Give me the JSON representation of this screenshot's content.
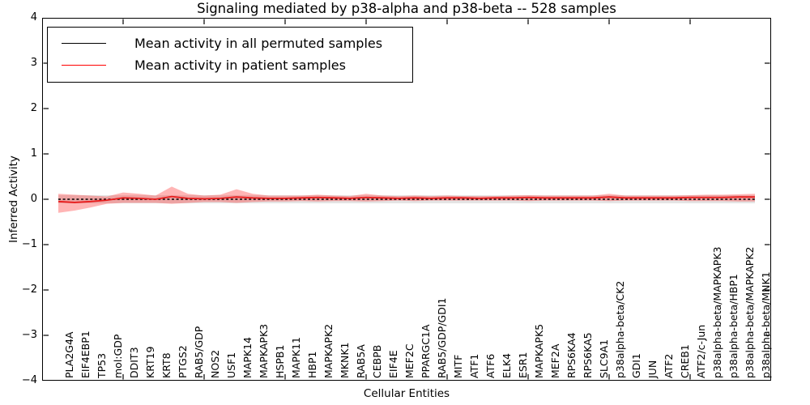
{
  "title": "Signaling mediated by p38-alpha and p38-beta -- 528 samples",
  "xlabel": "Cellular Entities",
  "ylabel": "Inferred Activity",
  "legend": {
    "items": [
      {
        "label": "Mean activity in all permuted samples",
        "color": "#000000"
      },
      {
        "label": "Mean activity in patient samples",
        "color": "#ff0000"
      }
    ],
    "position": "upper left"
  },
  "colors": {
    "permuted_line": "#000000",
    "permuted_band": "rgba(130,130,130,0.22)",
    "patient_line": "#e81c1c",
    "patient_band": "rgba(255,30,30,0.33)",
    "axis": "#000000"
  },
  "chart_data": {
    "type": "line",
    "title": "Signaling mediated by p38-alpha and p38-beta -- 528 samples",
    "xlabel": "Cellular Entities",
    "ylabel": "Inferred Activity",
    "ylim": [
      -4,
      4
    ],
    "yticks": [
      4,
      3,
      2,
      1,
      0,
      -1,
      -2,
      -3,
      -4
    ],
    "xtick_rotation": 90,
    "grid": false,
    "legend_position": "upper left",
    "categories": [
      "PLA2G4A",
      "EIF4EBP1",
      "TP53",
      "mol:GDP",
      "DDIT3",
      "KRT19",
      "KRT8",
      "PTGS2",
      "RAB5/GDP",
      "NOS2",
      "USF1",
      "MAPK14",
      "MAPKAPK3",
      "HSPB1",
      "MAPK11",
      "HBP1",
      "MAPKAPK2",
      "MKNK1",
      "RAB5A",
      "CEBPB",
      "EIF4E",
      "MEF2C",
      "PPARGC1A",
      "RAB5/GDP/GDI1",
      "MITF",
      "ATF1",
      "ATF6",
      "ELK4",
      "ESR1",
      "MAPKAPK5",
      "MEF2A",
      "RPS6KA4",
      "RPS6KA5",
      "SLC9A1",
      "p38alpha-beta/CK2",
      "GDI1",
      "JUN",
      "ATF2",
      "CREB1",
      "ATF2/c-Jun",
      "p38alpha-beta/MAPKAPK3",
      "p38alpha-beta/HBP1",
      "p38alpha-beta/MAPKAPK2",
      "p38alpha-beta/MNK1"
    ],
    "series": [
      {
        "name": "Mean activity in all permuted samples",
        "style": "dashed",
        "values": [
          0,
          0,
          0,
          0,
          0,
          0,
          0,
          0,
          0,
          0,
          0,
          0,
          0,
          0,
          0,
          0,
          0,
          0,
          0,
          0,
          0,
          0,
          0,
          0,
          0,
          0,
          0,
          0,
          0,
          0,
          0,
          0,
          0,
          0,
          0,
          0,
          0,
          0,
          0,
          0,
          0,
          0,
          0,
          0
        ],
        "band_upper": 0.09,
        "band_lower": -0.09
      },
      {
        "name": "Mean activity in patient samples",
        "style": "solid",
        "values": [
          -0.05,
          -0.07,
          -0.05,
          -0.02,
          0.03,
          0.02,
          0.0,
          0.06,
          0.02,
          0.01,
          0.02,
          0.05,
          0.03,
          0.02,
          0.02,
          0.03,
          0.04,
          0.03,
          0.02,
          0.04,
          0.03,
          0.02,
          0.03,
          0.02,
          0.03,
          0.03,
          0.02,
          0.03,
          0.03,
          0.04,
          0.03,
          0.03,
          0.03,
          0.03,
          0.05,
          0.03,
          0.03,
          0.03,
          0.03,
          0.04,
          0.04,
          0.04,
          0.05,
          0.05
        ],
        "band_upper": [
          0.12,
          0.1,
          0.08,
          0.06,
          0.15,
          0.12,
          0.08,
          0.28,
          0.12,
          0.08,
          0.1,
          0.22,
          0.12,
          0.08,
          0.08,
          0.08,
          0.1,
          0.08,
          0.07,
          0.12,
          0.08,
          0.07,
          0.08,
          0.07,
          0.08,
          0.07,
          0.07,
          0.07,
          0.08,
          0.09,
          0.08,
          0.08,
          0.08,
          0.08,
          0.12,
          0.08,
          0.08,
          0.08,
          0.08,
          0.09,
          0.1,
          0.1,
          0.11,
          0.12
        ],
        "band_lower": [
          -0.3,
          -0.25,
          -0.18,
          -0.1,
          -0.08,
          -0.08,
          -0.08,
          -0.1,
          -0.08,
          -0.06,
          -0.06,
          -0.08,
          -0.06,
          -0.05,
          -0.05,
          -0.04,
          -0.05,
          -0.04,
          -0.04,
          -0.05,
          -0.04,
          -0.03,
          -0.04,
          -0.03,
          -0.03,
          -0.03,
          -0.03,
          -0.03,
          -0.03,
          -0.04,
          -0.03,
          -0.03,
          -0.03,
          -0.03,
          -0.04,
          -0.03,
          -0.03,
          -0.03,
          -0.03,
          -0.04,
          -0.04,
          -0.04,
          -0.05,
          -0.05
        ]
      }
    ]
  }
}
